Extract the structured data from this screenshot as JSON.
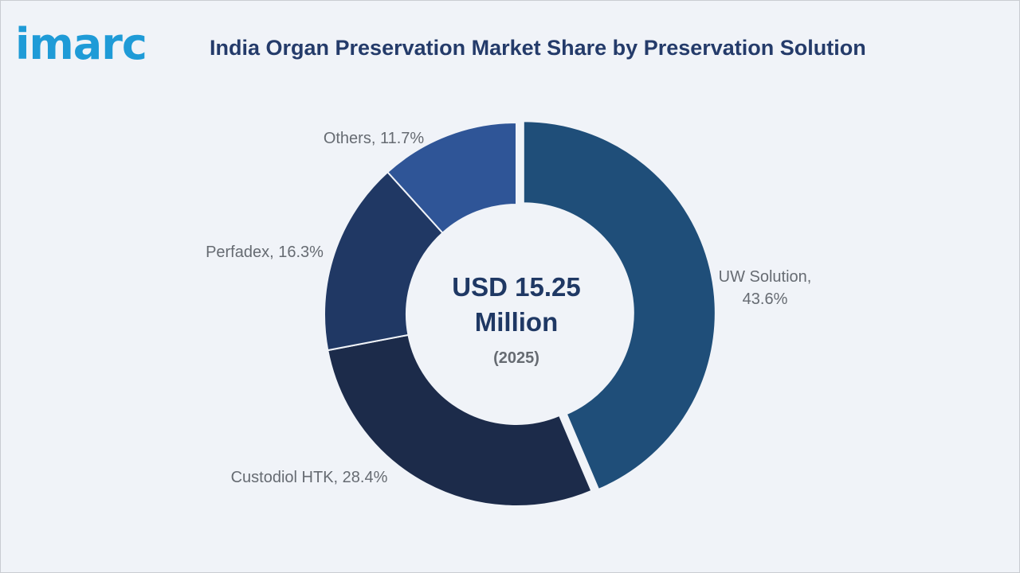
{
  "brand": {
    "logo_text": "imarc",
    "logo_color": "#1f9bd7"
  },
  "chart_data": {
    "type": "pie",
    "title": "India Organ Preservation Market Share by Preservation Solution",
    "center_text": {
      "line1": "USD 15.25",
      "line2": "Million",
      "line3": "(2025)"
    },
    "slices": [
      {
        "label": "UW Solution",
        "value": 43.6,
        "display": "43.6%",
        "color": "#1f4e79"
      },
      {
        "label": "Custodiol HTK",
        "value": 28.4,
        "display": "28.4%",
        "color": "#1c2b4a"
      },
      {
        "label": "Perfadex",
        "value": 16.3,
        "display": "16.3%",
        "color": "#203864"
      },
      {
        "label": "Others",
        "value": 11.7,
        "display": "11.7%",
        "color": "#2f5597"
      }
    ]
  }
}
